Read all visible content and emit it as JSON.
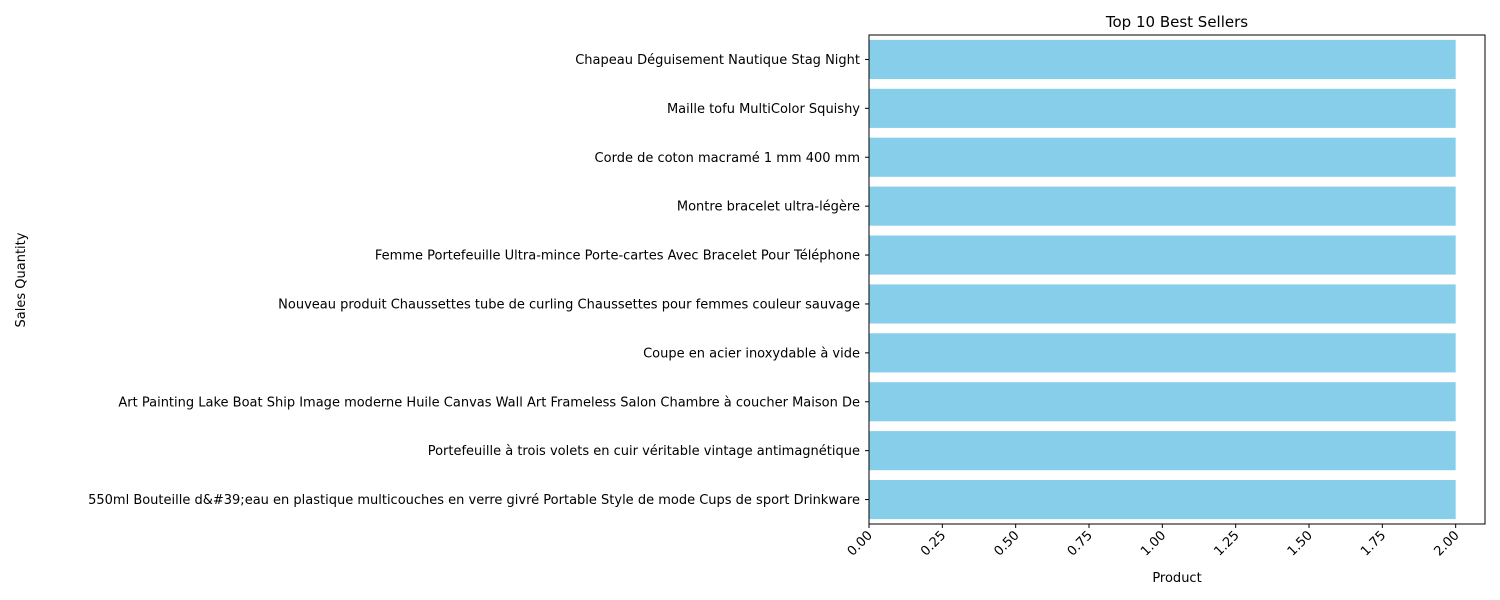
{
  "chart_data": {
    "type": "bar",
    "orientation": "horizontal",
    "title": "Top 10 Best Sellers",
    "xlabel": "Product",
    "ylabel": "Sales Quantity",
    "categories": [
      "Chapeau Déguisement Nautique Stag Night",
      "Maille tofu MultiColor Squishy",
      "Corde de coton macramé 1 mm 400 mm",
      "Montre bracelet ultra-légère",
      "Femme Portefeuille Ultra-mince Porte-cartes Avec Bracelet Pour Téléphone",
      "Nouveau produit Chaussettes tube de curling Chaussettes pour femmes couleur sauvage",
      "Coupe en acier inoxydable à vide",
      "Art Painting Lake Boat Ship Image moderne Huile Canvas Wall Art Frameless Salon Chambre à coucher Maison De",
      "Portefeuille à trois volets en cuir véritable vintage antimagnétique",
      "550ml Bouteille d&#39;eau en plastique multicouches en verre givré Portable Style de mode Cups de sport Drinkware"
    ],
    "values": [
      2,
      2,
      2,
      2,
      2,
      2,
      2,
      2,
      2,
      2
    ],
    "xlim": [
      0,
      2.1
    ],
    "xticks": [
      0,
      0.25,
      0.5,
      0.75,
      1.0,
      1.25,
      1.5,
      1.75,
      2.0
    ],
    "xtick_labels": [
      "0.00",
      "0.25",
      "0.50",
      "0.75",
      "1.00",
      "1.25",
      "1.50",
      "1.75",
      "2.00"
    ],
    "xtick_rotation": 45,
    "bar_color": "#87ceeb",
    "grid": false,
    "legend": "none"
  }
}
